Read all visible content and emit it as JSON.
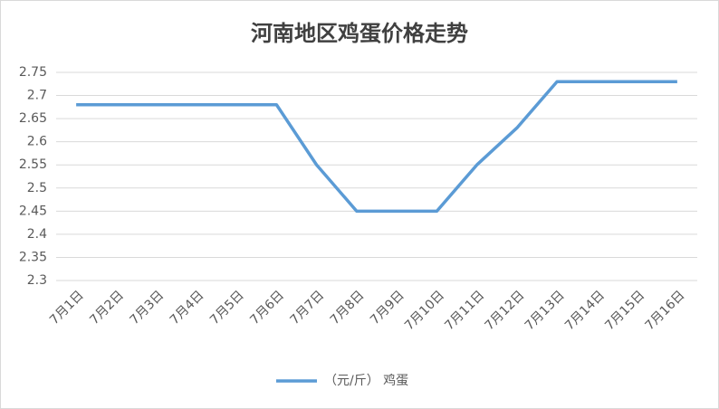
{
  "chart_data": {
    "type": "line",
    "title": "河南地区鸡蛋价格走势",
    "categories": [
      "7月1日",
      "7月2日",
      "7月3日",
      "7月4日",
      "7月5日",
      "7月6日",
      "7月7日",
      "7月8日",
      "7月9日",
      "7月10日",
      "7月11日",
      "7月12日",
      "7月13日",
      "7月14日",
      "7月15日",
      "7月16日"
    ],
    "series": [
      {
        "name": "（元/斤） 鸡蛋",
        "color": "#5b9bd5",
        "values": [
          2.68,
          2.68,
          2.68,
          2.68,
          2.68,
          2.68,
          2.55,
          2.45,
          2.45,
          2.45,
          2.55,
          2.63,
          2.73,
          2.73,
          2.73,
          2.73
        ]
      }
    ],
    "ylim": [
      2.3,
      2.75
    ],
    "yticks": [
      2.3,
      2.35,
      2.4,
      2.45,
      2.5,
      2.55,
      2.6,
      2.65,
      2.7,
      2.75
    ],
    "grid": true,
    "legend": "bottom"
  }
}
